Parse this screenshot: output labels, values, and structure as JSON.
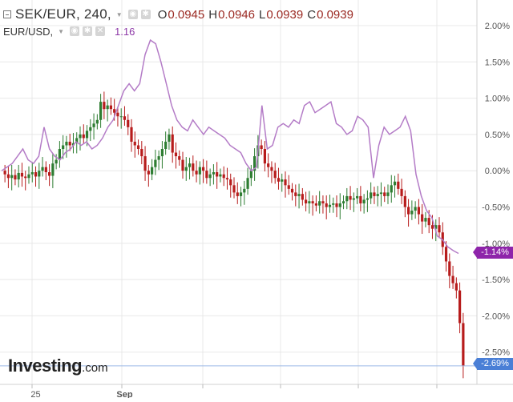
{
  "header": {
    "symbol": "SEK/EUR, 240,",
    "ohlc": [
      {
        "label": "O",
        "value": "0.0945"
      },
      {
        "label": "H",
        "value": "0.0946"
      },
      {
        "label": "L",
        "value": "0.0939"
      },
      {
        "label": "C",
        "value": "0.0939"
      }
    ],
    "compare_symbol": "EUR/USD,",
    "compare_value": "1.16"
  },
  "badges": {
    "eurusd": "-1.14%",
    "sekeur": "-2.69%"
  },
  "logo": {
    "main": "Investing",
    "suffix": ".com"
  },
  "colors": {
    "up": "#2e7d32",
    "down": "#b71c1c",
    "compare_line": "#b47cc7",
    "grid": "#e8e8e8",
    "last_price_line": "#9bb7e6"
  },
  "chart_data": {
    "type": "line",
    "y_axis": {
      "unit": "percent",
      "ticks": [
        "2.00%",
        "1.50%",
        "1.00%",
        "0.50%",
        "0.00%",
        "-0.50%",
        "-1.00%",
        "-1.50%",
        "-2.00%",
        "-2.50%"
      ],
      "tick_values": [
        2.0,
        1.5,
        1.0,
        0.5,
        0.0,
        -0.5,
        -1.0,
        -1.5,
        -2.0,
        -2.5
      ],
      "range": [
        -2.75,
        2.1
      ]
    },
    "x_axis": {
      "labels": [
        {
          "text": "25",
          "index": 9
        },
        {
          "text": "Sep",
          "index": 35
        }
      ]
    },
    "grid": true,
    "series": [
      {
        "symbol": "SEK/EUR",
        "kind": "candlestick",
        "close_pct": [
          -0.05,
          -0.1,
          -0.06,
          -0.12,
          -0.03,
          -0.08,
          -0.1,
          -0.05,
          -0.02,
          -0.08,
          0.0,
          0.05,
          -0.02,
          -0.07,
          0.1,
          0.15,
          0.3,
          0.35,
          0.4,
          0.35,
          0.38,
          0.45,
          0.5,
          0.45,
          0.55,
          0.6,
          0.65,
          0.7,
          0.95,
          0.85,
          0.9,
          0.85,
          0.8,
          0.75,
          0.75,
          0.7,
          0.6,
          0.4,
          0.35,
          0.3,
          0.2,
          0.0,
          -0.05,
          0.05,
          0.15,
          0.2,
          0.3,
          0.4,
          0.5,
          0.25,
          0.2,
          0.15,
          0.0,
          0.05,
          0.1,
          0.0,
          -0.05,
          0.05,
          0.0,
          -0.1,
          -0.05,
          -0.02,
          -0.08,
          -0.05,
          -0.1,
          -0.12,
          -0.2,
          -0.3,
          -0.35,
          -0.3,
          -0.25,
          -0.1,
          0.0,
          0.2,
          0.35,
          0.3,
          0.1,
          0.05,
          0.0,
          -0.1,
          -0.15,
          -0.12,
          -0.2,
          -0.25,
          -0.3,
          -0.35,
          -0.32,
          -0.4,
          -0.45,
          -0.42,
          -0.45,
          -0.48,
          -0.42,
          -0.45,
          -0.5,
          -0.47,
          -0.45,
          -0.5,
          -0.45,
          -0.42,
          -0.35,
          -0.4,
          -0.38,
          -0.35,
          -0.45,
          -0.4,
          -0.38,
          -0.3,
          -0.35,
          -0.32,
          -0.3,
          -0.35,
          -0.3,
          -0.2,
          -0.15,
          -0.25,
          -0.35,
          -0.5,
          -0.6,
          -0.55,
          -0.5,
          -0.6,
          -0.7,
          -0.65,
          -0.75,
          -0.8,
          -0.75,
          -0.85,
          -1.05,
          -1.25,
          -1.45,
          -1.55,
          -1.65,
          -2.1,
          -2.69
        ],
        "last_pct": -2.69
      },
      {
        "symbol": "EUR/USD",
        "kind": "line",
        "close_pct": [
          0.0,
          0.05,
          0.1,
          0.2,
          0.3,
          0.15,
          0.1,
          0.2,
          0.6,
          0.3,
          0.2,
          0.15,
          0.25,
          0.3,
          0.4,
          0.35,
          0.4,
          0.3,
          0.35,
          0.45,
          0.6,
          0.7,
          0.9,
          1.1,
          1.2,
          1.1,
          1.2,
          1.6,
          1.8,
          1.75,
          1.5,
          1.2,
          0.9,
          0.7,
          0.6,
          0.55,
          0.7,
          0.6,
          0.5,
          0.6,
          0.55,
          0.5,
          0.45,
          0.35,
          0.3,
          0.25,
          0.1,
          0.0,
          0.05,
          0.9,
          0.3,
          0.35,
          0.6,
          0.65,
          0.6,
          0.7,
          0.65,
          0.9,
          0.95,
          0.8,
          0.85,
          0.9,
          0.95,
          0.65,
          0.6,
          0.5,
          0.55,
          0.75,
          0.7,
          0.6,
          -0.1,
          0.35,
          0.6,
          0.5,
          0.55,
          0.6,
          0.75,
          0.55,
          -0.05,
          -0.35,
          -0.55,
          -0.65,
          -0.9,
          -0.95,
          -1.05,
          -1.1,
          -1.14
        ],
        "last_pct": -1.14
      }
    ]
  }
}
